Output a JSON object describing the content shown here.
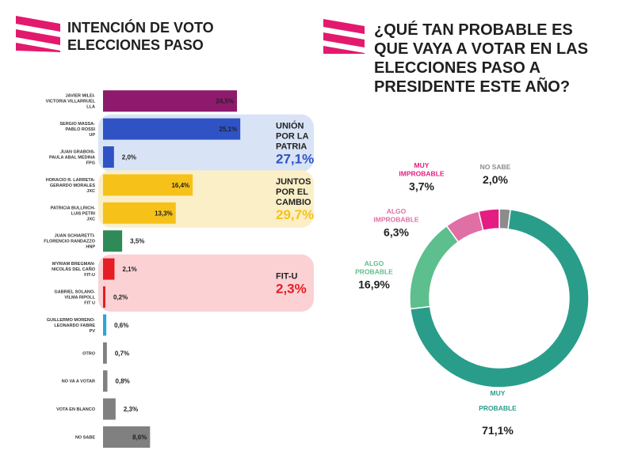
{
  "colors": {
    "logo_pink": "#e3196d",
    "lla": "#8e1a6e",
    "up": "#2f52c4",
    "jxc": "#f6c21a",
    "hnp": "#2e8b57",
    "fit": "#e51d24",
    "pv": "#2fa6d4",
    "gray": "#808080",
    "up_bg": "#d8e4f6",
    "jxc_bg": "#fbefc8",
    "fit_bg": "#fbd1d4"
  },
  "left": {
    "title_lines": [
      "INTENCIÓN DE VOTO",
      "ELECCIONES PASO"
    ]
  },
  "right": {
    "title_lines": [
      "¿QUÉ TAN PROBABLE ES",
      "QUE VAYA A VOTAR EN LAS",
      "ELECCIONES PASO A",
      "PRESIDENTE ESTE AÑO?"
    ]
  },
  "chart_data": [
    {
      "type": "bar",
      "orientation": "horizontal",
      "title": "INTENCIÓN DE VOTO ELECCIONES PASO",
      "unit": "%",
      "categories": [
        [
          "JAVIER MILEI-",
          "VICTORIA VILLARRUEL",
          "LLA"
        ],
        [
          "SERGIO MASSA-",
          "PABLO ROSSI",
          "UP"
        ],
        [
          "JUAN GRABOIS-",
          "PAULA ABAL MEDINA",
          "FPG"
        ],
        [
          "HORACIO R. LARRETA-",
          "GERARDO MORALES",
          "JXC"
        ],
        [
          "PATRICIA BULLRICH-",
          "LUIS PETRI",
          "JXC"
        ],
        [
          "JUAN SCHIARETTI-",
          "FLORENCIO RANDAZZO",
          "HNP"
        ],
        [
          "MYRIAM BREGMAN-",
          "NICOLÁS DEL CAÑO",
          "FIT-U"
        ],
        [
          "GABRIEL SOLANO-",
          "VILMA RIPOLL",
          "FIT U"
        ],
        [
          "GUILLERMO MORENO-",
          "LEONARDO FABRE",
          "PV"
        ],
        [
          "OTRO"
        ],
        [
          "NO VA A VOTAR"
        ],
        [
          "VOTA EN BLANCO"
        ],
        [
          "NO SABE"
        ]
      ],
      "values": [
        24.5,
        25.1,
        2.0,
        16.4,
        13.3,
        3.5,
        2.1,
        0.2,
        0.6,
        0.7,
        0.8,
        2.3,
        8.6
      ],
      "value_labels": [
        "24,5%",
        "25,1%",
        "2,0%",
        "16,4%",
        "13,3%",
        "3,5%",
        "2,1%",
        "0,2%",
        "0,6%",
        "0,7%",
        "0,8%",
        "2,3%",
        "8,6%"
      ],
      "bar_colors": [
        "lla",
        "up",
        "up",
        "jxc",
        "jxc",
        "hnp",
        "fit",
        "fit",
        "pv",
        "gray",
        "gray",
        "gray",
        "gray"
      ],
      "groups": [
        {
          "name_lines": [
            "UNIÓN",
            "POR LA",
            "PATRIA"
          ],
          "total": "27,1%",
          "color": "up",
          "bg": "up_bg",
          "from": 1,
          "to": 2
        },
        {
          "name_lines": [
            "JUNTOS",
            "POR EL",
            "CAMBIO"
          ],
          "total": "29,7%",
          "color": "jxc",
          "bg": "jxc_bg",
          "from": 3,
          "to": 4
        },
        {
          "name_lines": [
            "FIT-U"
          ],
          "total": "2,3%",
          "color": "fit",
          "bg": "fit_bg",
          "from": 6,
          "to": 7
        }
      ]
    },
    {
      "type": "pie",
      "variant": "donut",
      "title": "¿QUÉ TAN PROBABLE ES QUE VAYA A VOTAR EN LAS ELECCIONES PASO A PRESIDENTE ESTE AÑO?",
      "unit": "%",
      "slices": [
        {
          "label_lines": [
            "MUY",
            "PROBABLE"
          ],
          "value": 71.1,
          "value_label": "71,1%",
          "color": "#2a9d8a"
        },
        {
          "label_lines": [
            "ALGO",
            "PROBABLE"
          ],
          "value": 16.9,
          "value_label": "16,9%",
          "color": "#5cbf8d"
        },
        {
          "label_lines": [
            "ALGO",
            "IMPROBABLE"
          ],
          "value": 6.3,
          "value_label": "6,3%",
          "color": "#e06fa6"
        },
        {
          "label_lines": [
            "MUY",
            "IMPROBABLE"
          ],
          "value": 3.7,
          "value_label": "3,7%",
          "color": "#e31d82"
        },
        {
          "label_lines": [
            "NO SABE"
          ],
          "value": 2.0,
          "value_label": "2,0%",
          "color": "#8c8c8c"
        }
      ],
      "slice_order": "clockwise from top, starting at 'NO SABE' then 'MUY PROBABLE'"
    }
  ]
}
